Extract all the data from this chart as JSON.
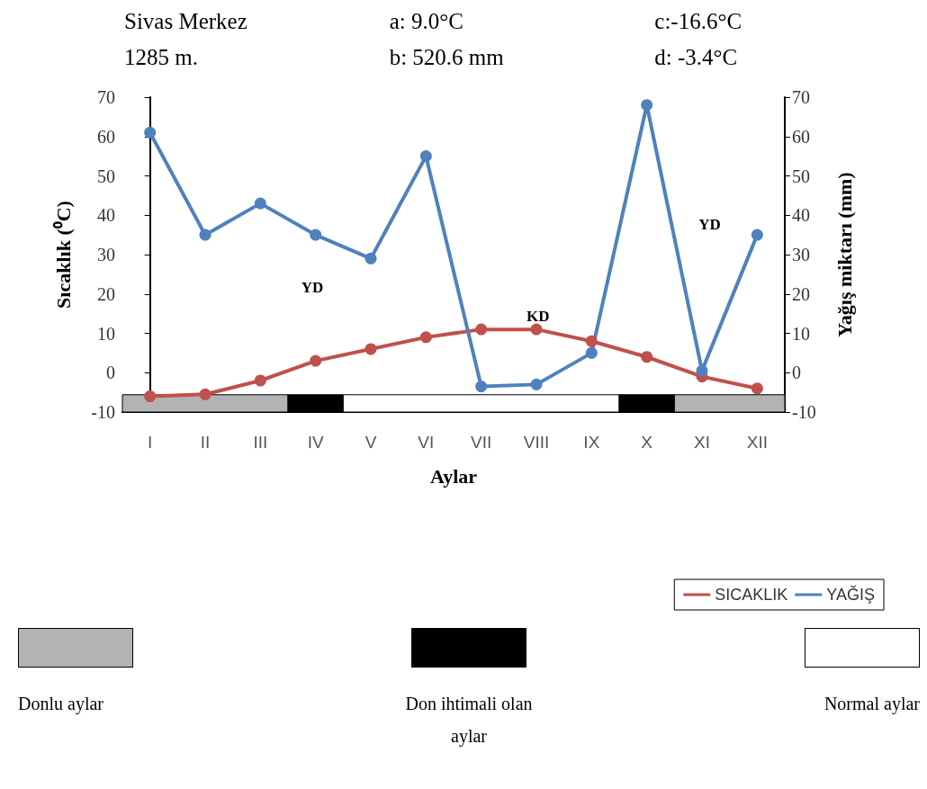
{
  "chart_data": {
    "type": "line",
    "annotations": [
      "Sivas Merkez",
      "a: 9.0°C",
      "c:-16.6°C",
      "1285 m.",
      "b: 520.6 mm",
      "d: -3.4°C",
      "YD",
      "KD",
      "YD",
      "Donlu aylar",
      "Don ihtimali olan aylar",
      "Normal aylar"
    ],
    "xlabel": "Aylar",
    "ylabel": "Sıcaklık (⁰C)",
    "y2label": "Yağış miktarı (mm)",
    "categories": [
      "I",
      "II",
      "III",
      "IV",
      "V",
      "VI",
      "VII",
      "VIII",
      "IX",
      "X",
      "XI",
      "XII"
    ],
    "series": [
      {
        "name": "SICAKLIK",
        "color": "#c0504d",
        "values": [
          -6,
          -5.5,
          -2,
          3,
          6,
          9,
          11,
          11,
          8,
          4,
          -1,
          -4
        ]
      },
      {
        "name": "YAĞIŞ",
        "color": "#4f81bd",
        "values": [
          61,
          35,
          43,
          35,
          29,
          55,
          -3.5,
          -3,
          5,
          68,
          0.5,
          35
        ]
      }
    ],
    "ylim": [
      -10,
      70
    ],
    "yticks": [
      -10,
      0,
      10,
      20,
      30,
      40,
      50,
      60,
      70
    ],
    "y2lim": [
      -10,
      70
    ],
    "y2ticks": [
      -10,
      0,
      10,
      20,
      30,
      40,
      50,
      60,
      70
    ],
    "bands": [
      {
        "axis": "x",
        "from": "I",
        "to": "III",
        "color": "#b3b3b3"
      },
      {
        "axis": "x",
        "from": "IV",
        "to": "IV",
        "color": "#000000"
      },
      {
        "axis": "x",
        "from": "V",
        "to": "IX",
        "color": "#ffffff"
      },
      {
        "axis": "x",
        "from": "X",
        "to": "X",
        "color": "#000000"
      },
      {
        "axis": "x",
        "from": "XI",
        "to": "XII",
        "color": "#b3b3b3"
      }
    ],
    "marker": "circle",
    "grid": false,
    "legend": "bottom right"
  }
}
